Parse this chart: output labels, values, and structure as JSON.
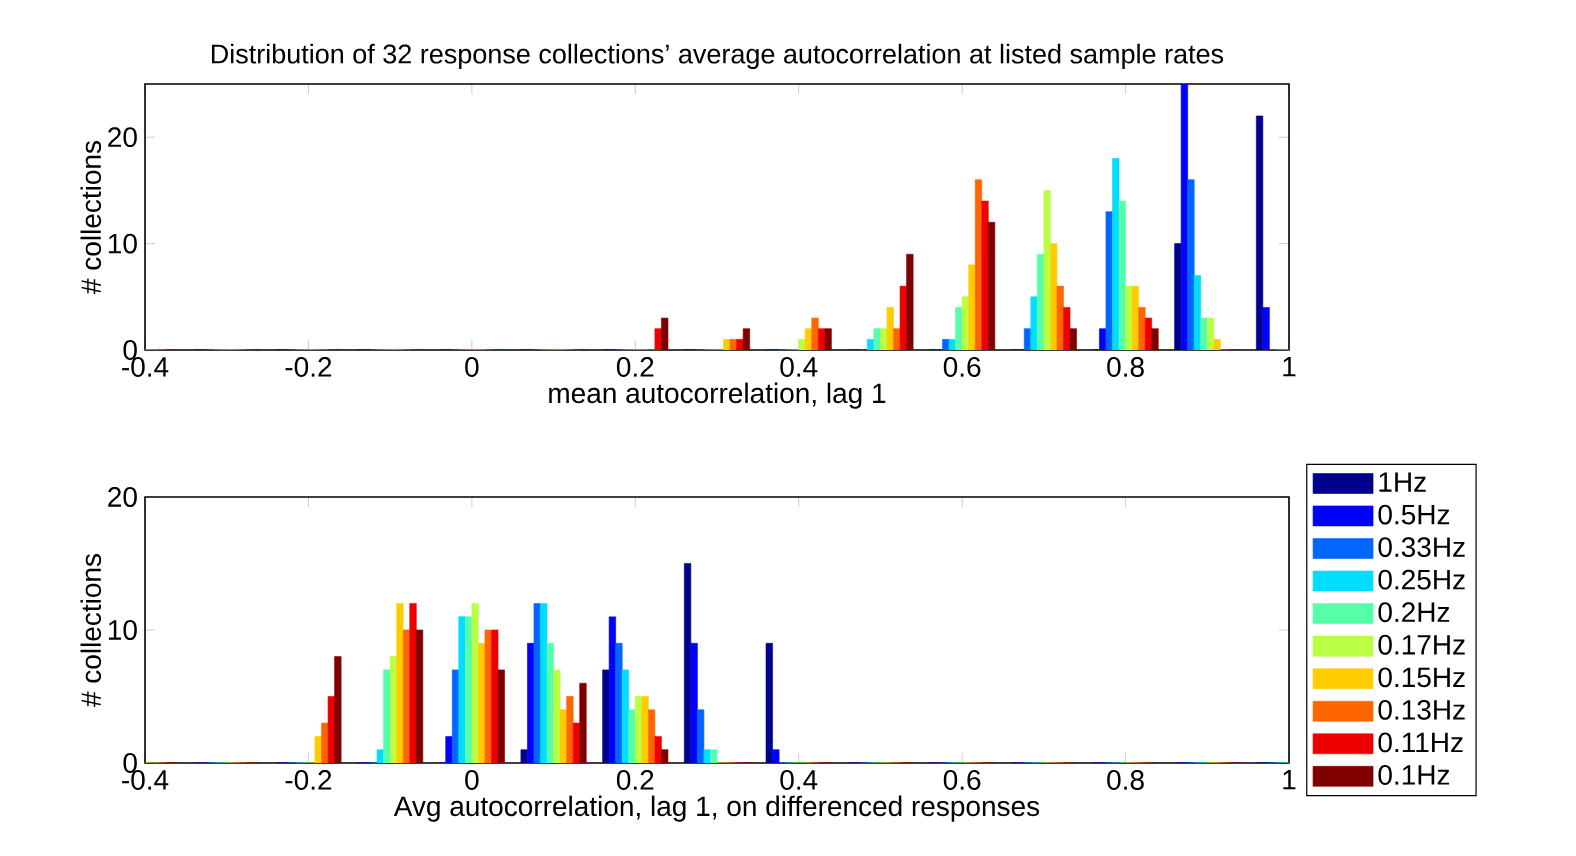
{
  "chart_data": [
    {
      "type": "bar",
      "title": "Distribution of 32 response collections’ average autocorrelation at listed sample rates",
      "xlabel": "mean autocorrelation, lag 1",
      "ylabel": "# collections",
      "x": [
        -0.4,
        -0.3,
        -0.2,
        -0.1,
        0,
        0.1,
        0.2,
        0.3,
        0.4,
        0.5,
        0.6,
        0.7,
        0.8,
        0.9,
        1.0
      ],
      "xlim": [
        -0.4,
        1
      ],
      "xticks": [
        -0.4,
        -0.2,
        0,
        0.2,
        0.4,
        0.6,
        0.8,
        1
      ],
      "ylim": [
        0,
        25
      ],
      "yticks": [
        0,
        10,
        20
      ],
      "series": [
        {
          "color": "#00008c",
          "values": [
            0,
            0,
            0,
            0,
            0,
            0,
            0,
            0,
            0,
            0,
            0,
            0,
            0,
            10,
            22
          ]
        },
        {
          "color": "#0000ff",
          "values": [
            0,
            0,
            0,
            0,
            0,
            0,
            0,
            0,
            0,
            0,
            0,
            0,
            2,
            25,
            4
          ]
        },
        {
          "color": "#0066ff",
          "values": [
            0,
            0,
            0,
            0,
            0,
            0,
            0,
            0,
            0,
            0,
            1,
            2,
            13,
            16,
            0
          ]
        },
        {
          "color": "#00ddff",
          "values": [
            0,
            0,
            0,
            0,
            0,
            0,
            0,
            0,
            0,
            1,
            1,
            5,
            18,
            7,
            0
          ]
        },
        {
          "color": "#55ffaa",
          "values": [
            0,
            0,
            0,
            0,
            0,
            0,
            0,
            0,
            0,
            2,
            4,
            9,
            14,
            3,
            0
          ]
        },
        {
          "color": "#bbff44",
          "values": [
            0,
            0,
            0,
            0,
            0,
            0,
            0,
            0,
            1,
            2,
            5,
            15,
            6,
            3,
            0
          ]
        },
        {
          "color": "#ffcc00",
          "values": [
            0,
            0,
            0,
            0,
            0,
            0,
            0,
            1,
            2,
            4,
            8,
            10,
            6,
            1,
            0
          ]
        },
        {
          "color": "#ff6600",
          "values": [
            0,
            0,
            0,
            0,
            0,
            0,
            0,
            1,
            3,
            2,
            16,
            6,
            4,
            0,
            0
          ]
        },
        {
          "color": "#ee0000",
          "values": [
            0,
            0,
            0,
            0,
            0,
            0,
            2,
            1,
            2,
            6,
            14,
            4,
            3,
            0,
            0
          ]
        },
        {
          "color": "#800000",
          "values": [
            0,
            0,
            0,
            0,
            0,
            0,
            3,
            2,
            2,
            9,
            12,
            2,
            2,
            0,
            0
          ]
        }
      ]
    },
    {
      "type": "bar",
      "xlabel": "Avg autocorrelation, lag 1, on differenced responses",
      "ylabel": "# collections",
      "legend": "right",
      "x": [
        -0.4,
        -0.3,
        -0.2,
        -0.1,
        0,
        0.1,
        0.2,
        0.3,
        0.4,
        0.5,
        0.6,
        0.7,
        0.8,
        0.9,
        1.0
      ],
      "xlim": [
        -0.4,
        1
      ],
      "xticks": [
        -0.4,
        -0.2,
        0,
        0.2,
        0.4,
        0.6,
        0.8,
        1
      ],
      "ylim": [
        0,
        20
      ],
      "yticks": [
        0,
        10,
        20
      ],
      "series": [
        {
          "name": "1Hz",
          "color": "#00008c",
          "values": [
            0,
            0,
            0,
            0,
            0,
            1,
            7,
            15,
            9,
            0,
            0,
            0,
            0,
            0,
            0
          ]
        },
        {
          "name": "0.5Hz",
          "color": "#0000ff",
          "values": [
            0,
            0,
            0,
            0,
            2,
            9,
            11,
            9,
            1,
            0,
            0,
            0,
            0,
            0,
            0
          ]
        },
        {
          "name": "0.33Hz",
          "color": "#0066ff",
          "values": [
            0,
            0,
            0,
            0,
            7,
            12,
            9,
            4,
            0,
            0,
            0,
            0,
            0,
            0,
            0
          ]
        },
        {
          "name": "0.25Hz",
          "color": "#00ddff",
          "values": [
            0,
            0,
            0,
            1,
            11,
            12,
            7,
            1,
            0,
            0,
            0,
            0,
            0,
            0,
            0
          ]
        },
        {
          "name": "0.2Hz",
          "color": "#55ffaa",
          "values": [
            0,
            0,
            0,
            7,
            11,
            9,
            4,
            1,
            0,
            0,
            0,
            0,
            0,
            0,
            0
          ]
        },
        {
          "name": "0.17Hz",
          "color": "#bbff44",
          "values": [
            0,
            0,
            0,
            8,
            12,
            7,
            5,
            0,
            0,
            0,
            0,
            0,
            0,
            0,
            0
          ]
        },
        {
          "name": "0.15Hz",
          "color": "#ffcc00",
          "values": [
            0,
            0,
            2,
            12,
            9,
            4,
            5,
            0,
            0,
            0,
            0,
            0,
            0,
            0,
            0
          ]
        },
        {
          "name": "0.13Hz",
          "color": "#ff6600",
          "values": [
            0,
            0,
            3,
            10,
            10,
            5,
            4,
            0,
            0,
            0,
            0,
            0,
            0,
            0,
            0
          ]
        },
        {
          "name": "0.11Hz",
          "color": "#ee0000",
          "values": [
            0,
            0,
            5,
            12,
            10,
            3,
            2,
            0,
            0,
            0,
            0,
            0,
            0,
            0,
            0
          ]
        },
        {
          "name": "0.1Hz",
          "color": "#800000",
          "values": [
            0,
            0,
            8,
            10,
            7,
            6,
            1,
            0,
            0,
            0,
            0,
            0,
            0,
            0,
            0
          ]
        }
      ]
    }
  ]
}
